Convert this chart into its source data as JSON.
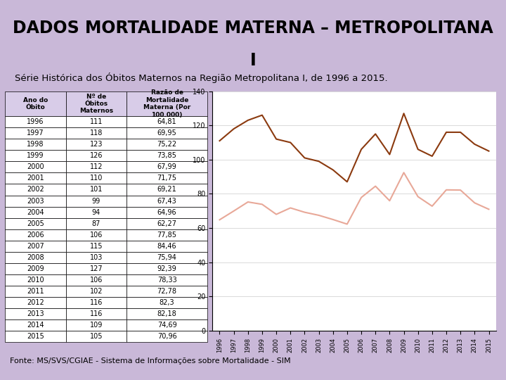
{
  "title_line1": "DADOS MORTALIDADE MATERNA – METROPOLITANA",
  "title_line2": "I",
  "subtitle": "Série Histórica dos Óbitos Maternos na Região Metropolitana I, de 1996 a 2015.",
  "footer": "Fonte: MS/SVS/CGIAE - Sistema de Informações sobre Mortalidade - SIM",
  "background_color": "#c9b8d8",
  "years": [
    1996,
    1997,
    1998,
    1999,
    2000,
    2001,
    2002,
    2003,
    2004,
    2005,
    2006,
    2007,
    2008,
    2009,
    2010,
    2011,
    2012,
    2013,
    2014,
    2015
  ],
  "obitos": [
    111,
    118,
    123,
    126,
    112,
    110,
    101,
    99,
    94,
    87,
    106,
    115,
    103,
    127,
    106,
    102,
    116,
    116,
    109,
    105
  ],
  "razao": [
    64.81,
    69.95,
    75.22,
    73.85,
    67.99,
    71.75,
    69.21,
    67.43,
    64.96,
    62.27,
    77.85,
    84.46,
    75.94,
    92.39,
    78.33,
    72.78,
    82.3,
    82.18,
    74.69,
    70.96
  ],
  "obitos_color": "#8B3A0F",
  "razao_color": "#E8A898",
  "table_header_bg": "#c9b8d8",
  "table_bg": "#ffffff",
  "chart_bg": "#ffffff",
  "col_headers": [
    "Ano do\nÓbito",
    "Nº de\nÓbitos\nMaternos",
    "Razão de\nMortalidade\nMaterna (Por\n100.000)"
  ],
  "legend_obitos": "Nº de Óbitos Maternos",
  "legend_razao": "Razão de Mortalidade\nMaterna (Por 100.000)"
}
